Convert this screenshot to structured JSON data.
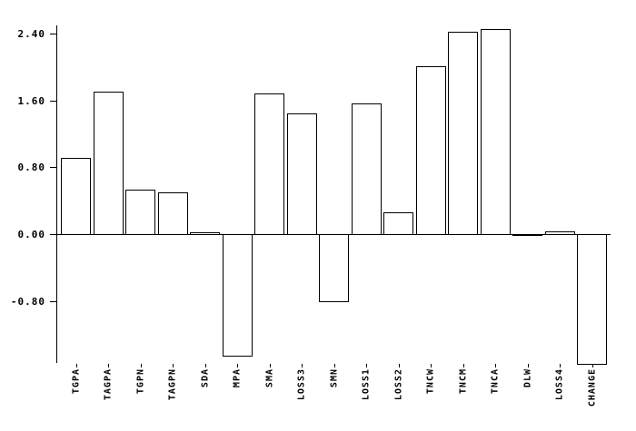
{
  "chart_data": {
    "type": "bar",
    "title": "",
    "xlabel": "",
    "ylabel": "",
    "categories": [
      "TGPA",
      "TAGPA",
      "TGPN",
      "TAGPN",
      "SDA",
      "MPA",
      "SMA",
      "LOSS3",
      "SMN",
      "LOSS1",
      "LOSS2",
      "TNCW",
      "TNCM",
      "TNCA",
      "DLW",
      "LOSS4",
      "CHANGE"
    ],
    "values": [
      0.92,
      1.72,
      0.54,
      0.51,
      0.03,
      -1.47,
      1.7,
      1.46,
      -0.81,
      1.58,
      0.27,
      2.02,
      2.43,
      2.47,
      0.0,
      0.04,
      -1.57
    ],
    "yticks": [
      2.4,
      1.6,
      0.8,
      0.0,
      -0.8
    ],
    "ytick_labels": [
      "2.40",
      "1.60",
      "0.80",
      "0.00",
      "-0.80"
    ],
    "ylim": [
      -1.6,
      2.5
    ],
    "grid": false,
    "legend": null,
    "bar_fill": "#ffffff",
    "bar_border": "#000000",
    "axis_color": "#000000"
  }
}
